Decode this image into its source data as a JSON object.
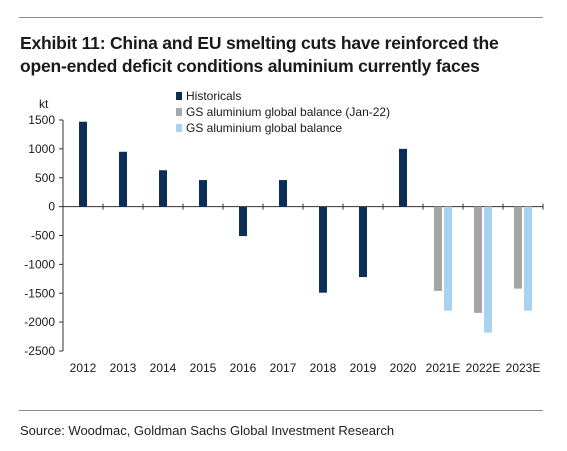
{
  "title_line1": "Exhibit 11: China and EU smelting cuts have reinforced the",
  "title_line2": "open-ended deficit conditions aluminium currently faces",
  "source": "Source: Woodmac, Goldman Sachs Global Investment Research",
  "colors": {
    "historicals": "#0d2f57",
    "balance_jan22": "#a6a6a6",
    "balance": "#a9d4ef"
  },
  "chart_data": {
    "type": "bar",
    "ylabel": "kt",
    "ylim": [
      -2500,
      1500
    ],
    "yticks": [
      1500,
      1000,
      500,
      0,
      -500,
      -1000,
      -1500,
      -2000,
      -2500
    ],
    "categories": [
      "2012",
      "2013",
      "2014",
      "2015",
      "2016",
      "2017",
      "2018",
      "2019",
      "2020",
      "2021E",
      "2022E",
      "2023E"
    ],
    "legend_position": "top-center",
    "grid": false,
    "series": [
      {
        "name": "Historicals",
        "color": "#0d2f57",
        "values": [
          1470,
          950,
          630,
          460,
          -510,
          460,
          -1490,
          -1220,
          1000,
          null,
          null,
          null
        ]
      },
      {
        "name": "GS aluminium global balance (Jan-22)",
        "color": "#a6a6a6",
        "values": [
          null,
          null,
          null,
          null,
          null,
          null,
          null,
          null,
          null,
          -1460,
          -1840,
          -1420
        ]
      },
      {
        "name": "GS aluminium global balance",
        "color": "#a9d4ef",
        "values": [
          null,
          null,
          null,
          null,
          null,
          null,
          null,
          null,
          null,
          -1800,
          -2180,
          -1800
        ]
      }
    ]
  }
}
